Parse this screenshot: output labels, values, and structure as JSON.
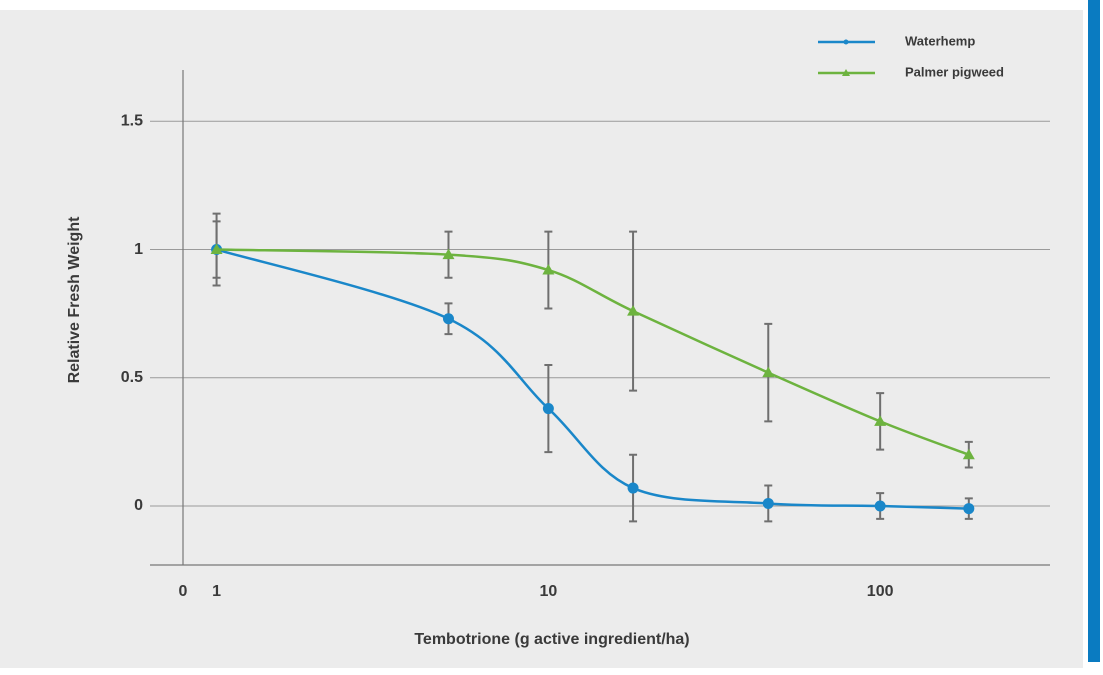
{
  "chart_data": {
    "type": "line",
    "x_label": "Tembotrione (g active ingredient/ha)",
    "y_label": "Relative Fresh Weight",
    "x_axis_origin_label": "0",
    "log_x": true,
    "xlim": [
      0.63,
      325
    ],
    "xticks": [
      1,
      10,
      100
    ],
    "ylim": [
      -0.23,
      1.7
    ],
    "yticks": [
      0,
      0.5,
      1.0,
      1.5
    ],
    "grid": true,
    "legend": "top-right",
    "x": [
      1,
      5,
      10,
      18,
      46,
      100,
      185
    ],
    "series": [
      {
        "name": "Waterhemp",
        "color": "#1a87c9",
        "marker": "circle",
        "values": [
          1.0,
          0.73,
          0.38,
          0.07,
          0.01,
          0,
          -0.01
        ],
        "errors": [
          0.11,
          0.06,
          0.17,
          0.13,
          0.07,
          0.05,
          0.04
        ]
      },
      {
        "name": "Palmer pigweed",
        "color": "#6db33f",
        "marker": "triangle",
        "values": [
          1.0,
          0.98,
          0.92,
          0.76,
          0.52,
          0.33,
          0.2
        ],
        "errors": [
          0.14,
          0.09,
          0.15,
          0.31,
          0.19,
          0.11,
          0.05
        ]
      }
    ]
  }
}
